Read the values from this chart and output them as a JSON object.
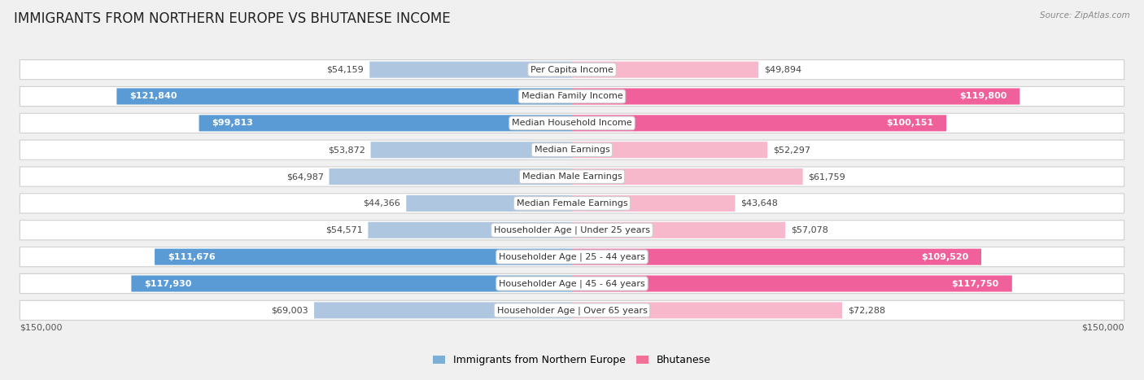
{
  "title": "IMMIGRANTS FROM NORTHERN EUROPE VS BHUTANESE INCOME",
  "source": "Source: ZipAtlas.com",
  "categories": [
    "Per Capita Income",
    "Median Family Income",
    "Median Household Income",
    "Median Earnings",
    "Median Male Earnings",
    "Median Female Earnings",
    "Householder Age | Under 25 years",
    "Householder Age | 25 - 44 years",
    "Householder Age | 45 - 64 years",
    "Householder Age | Over 65 years"
  ],
  "left_values": [
    54159,
    121840,
    99813,
    53872,
    64987,
    44366,
    54571,
    111676,
    117930,
    69003
  ],
  "right_values": [
    49894,
    119800,
    100151,
    52297,
    61759,
    43648,
    57078,
    109520,
    117750,
    72288
  ],
  "left_labels": [
    "$54,159",
    "$121,840",
    "$99,813",
    "$53,872",
    "$64,987",
    "$44,366",
    "$54,571",
    "$111,676",
    "$117,930",
    "$69,003"
  ],
  "right_labels": [
    "$49,894",
    "$119,800",
    "$100,151",
    "$52,297",
    "$61,759",
    "$43,648",
    "$57,078",
    "$109,520",
    "$117,750",
    "$72,288"
  ],
  "max_value": 150000,
  "left_color_light": "#aec6e0",
  "left_color_dark": "#5b9bd5",
  "right_color_light": "#f8b8cc",
  "right_color_dark": "#f0609a",
  "left_legend_color": "#7bafd4",
  "right_legend_color": "#f07098",
  "left_label": "Immigrants from Northern Europe",
  "right_label": "Bhutanese",
  "bg_color": "#f0f0f0",
  "row_bg_color": "#f8f8f8",
  "title_fontsize": 12,
  "cat_fontsize": 8,
  "value_fontsize": 8,
  "axis_label": "$150,000",
  "threshold": 82000
}
